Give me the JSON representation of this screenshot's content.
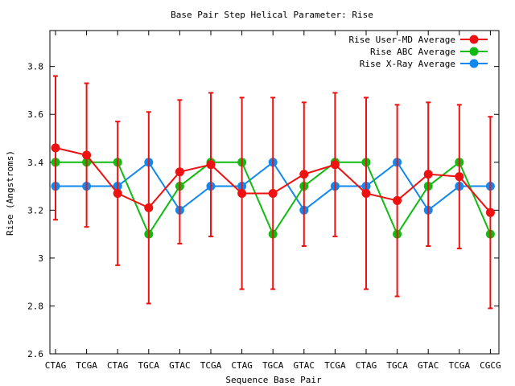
{
  "chart_data": {
    "type": "line",
    "title": "Base Pair Step Helical Parameter: Rise",
    "xlabel": "Sequence Base Pair",
    "ylabel": "Rise (Angstroms)",
    "ylim": [
      2.6,
      3.95
    ],
    "yticks": [
      2.6,
      2.8,
      3,
      3.2,
      3.4,
      3.6,
      3.8
    ],
    "ytick_labels": [
      "2.6",
      "2.8",
      "3",
      "3.2",
      "3.4",
      "3.6",
      "3.8"
    ],
    "grid": false,
    "legend_position": "top-right",
    "categories": [
      "CTAG",
      "TCGA",
      "CTAG",
      "TGCA",
      "GTAC",
      "TCGA",
      "CTAG",
      "TGCA",
      "GTAC",
      "TCGA",
      "CTAG",
      "TGCA",
      "GTAC",
      "TCGA",
      "CGCG"
    ],
    "series": [
      {
        "name": "Rise User-MD Average",
        "color": "#ee1111",
        "values": [
          3.46,
          3.43,
          3.27,
          3.21,
          3.36,
          3.39,
          3.27,
          3.27,
          3.35,
          3.39,
          3.27,
          3.24,
          3.35,
          3.34,
          3.19
        ],
        "errors": [
          0.3,
          0.3,
          0.3,
          0.4,
          0.3,
          0.3,
          0.4,
          0.4,
          0.3,
          0.3,
          0.4,
          0.4,
          0.3,
          0.3,
          0.4
        ]
      },
      {
        "name": "Rise ABC Average",
        "color": "#11bb11",
        "values": [
          3.4,
          3.4,
          3.4,
          3.1,
          3.3,
          3.4,
          3.4,
          3.1,
          3.3,
          3.4,
          3.4,
          3.1,
          3.3,
          3.4,
          3.1
        ]
      },
      {
        "name": "Rise X-Ray Average",
        "color": "#1188ee",
        "values": [
          3.3,
          3.3,
          3.3,
          3.4,
          3.2,
          3.3,
          3.3,
          3.4,
          3.2,
          3.3,
          3.3,
          3.4,
          3.2,
          3.3,
          3.3
        ]
      }
    ]
  }
}
